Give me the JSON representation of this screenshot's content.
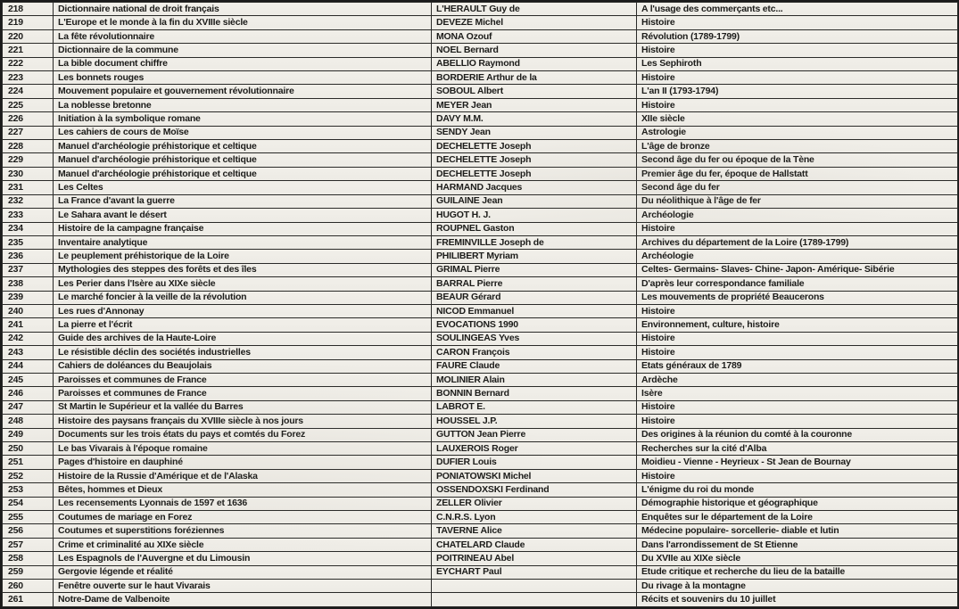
{
  "colors": {
    "page_background": "#cbc9c4",
    "cell_background": "#efede8",
    "border": "#2a2a28",
    "text": "#1c1c1a"
  },
  "table": {
    "rows": [
      {
        "id": "218",
        "title": "Dictionnaire national de droit français",
        "author": "L'HERAULT Guy de",
        "subject": "A l'usage des commerçants etc..."
      },
      {
        "id": "219",
        "title": "L'Europe et le monde à la fin du XVIIIe siècle",
        "author": "DEVEZE Michel",
        "subject": "Histoire"
      },
      {
        "id": "220",
        "title": "La fête révolutionnaire",
        "author": "MONA Ozouf",
        "subject": "Révolution (1789-1799)"
      },
      {
        "id": "221",
        "title": "Dictionnaire de la commune",
        "author": "NOEL Bernard",
        "subject": "Histoire"
      },
      {
        "id": "222",
        "title": "La bible document chiffre",
        "author": "ABELLIO Raymond",
        "subject": "Les Sephiroth"
      },
      {
        "id": "223",
        "title": "Les bonnets rouges",
        "author": "BORDERIE Arthur de la",
        "subject": "Histoire"
      },
      {
        "id": "224",
        "title": "Mouvement populaire et gouvernement révolutionnaire",
        "author": "SOBOUL Albert",
        "subject": "L'an II (1793-1794)"
      },
      {
        "id": "225",
        "title": "La noblesse bretonne",
        "author": "MEYER Jean",
        "subject": "Histoire"
      },
      {
        "id": "226",
        "title": "Initiation à la symbolique romane",
        "author": "DAVY M.M.",
        "subject": "XIIe siècle"
      },
      {
        "id": "227",
        "title": "Les cahiers de cours de Moïse",
        "author": "SENDY Jean",
        "subject": "Astrologie"
      },
      {
        "id": "228",
        "title": "Manuel d'archéologie préhistorique et celtique",
        "author": "DECHELETTE Joseph",
        "subject": "L'âge de bronze"
      },
      {
        "id": "229",
        "title": "Manuel d'archéologie préhistorique et celtique",
        "author": "DECHELETTE Joseph",
        "subject": "Second âge du fer ou époque de la Tène"
      },
      {
        "id": "230",
        "title": "Manuel d'archéologie préhistorique et celtique",
        "author": "DECHELETTE Joseph",
        "subject": "Premier âge du fer, époque de Hallstatt"
      },
      {
        "id": "231",
        "title": "Les Celtes",
        "author": "HARMAND Jacques",
        "subject": "Second âge du fer"
      },
      {
        "id": "232",
        "title": "La France d'avant la guerre",
        "author": "GUILAINE Jean",
        "subject": "Du néolithique à l'âge de fer"
      },
      {
        "id": "233",
        "title": "Le Sahara avant le désert",
        "author": "HUGOT H. J.",
        "subject": "Archéologie"
      },
      {
        "id": "234",
        "title": "Histoire de la campagne française",
        "author": "ROUPNEL Gaston",
        "subject": "Histoire"
      },
      {
        "id": "235",
        "title": "Inventaire analytique",
        "author": "FREMINVILLE Joseph de",
        "subject": "Archives du département de la Loire (1789-1799)"
      },
      {
        "id": "236",
        "title": "Le peuplement préhistorique de la Loire",
        "author": "PHILIBERT Myriam",
        "subject": "Archéologie"
      },
      {
        "id": "237",
        "title": "Mythologies des steppes des forêts et des îles",
        "author": "GRIMAL Pierre",
        "subject": "Celtes- Germains- Slaves- Chine- Japon- Amérique- Sibérie"
      },
      {
        "id": "238",
        "title": "Les Perier dans l'Isère au XIXe siècle",
        "author": "BARRAL Pierre",
        "subject": "D'après leur correspondance familiale"
      },
      {
        "id": "239",
        "title": "Le marché foncier à la veille de la révolution",
        "author": "BEAUR Gérard",
        "subject": "Les mouvements de propriété Beaucerons"
      },
      {
        "id": "240",
        "title": "Les rues d'Annonay",
        "author": "NICOD Emmanuel",
        "subject": "Histoire"
      },
      {
        "id": "241",
        "title": "La pierre et l'écrit",
        "author": "EVOCATIONS 1990",
        "subject": "Environnement, culture, histoire"
      },
      {
        "id": "242",
        "title": "Guide des archives de la Haute-Loire",
        "author": "SOULINGEAS Yves",
        "subject": "Histoire"
      },
      {
        "id": "243",
        "title": "Le résistible déclin des sociétés industrielles",
        "author": "CARON François",
        "subject": "Histoire"
      },
      {
        "id": "244",
        "title": "Cahiers de doléances du Beaujolais",
        "author": "FAURE Claude",
        "subject": "Etats généraux de 1789"
      },
      {
        "id": "245",
        "title": "Paroisses et communes de France",
        "author": "MOLINIER Alain",
        "subject": "Ardèche"
      },
      {
        "id": "246",
        "title": "Paroisses et communes de France",
        "author": "BONNIN Bernard",
        "subject": "Isère"
      },
      {
        "id": "247",
        "title": "St Martin le Supérieur et la vallée du Barres",
        "author": "LABROT E.",
        "subject": "Histoire"
      },
      {
        "id": "248",
        "title": "Histoire des paysans français du XVIIIe siècle à nos jours",
        "author": "HOUSSEL J.P.",
        "subject": "Histoire"
      },
      {
        "id": "249",
        "title": "Documents sur les trois états du pays et comtés du Forez",
        "author": "GUTTON Jean Pierre",
        "subject": "Des origines à la réunion du comté à la couronne"
      },
      {
        "id": "250",
        "title": "Le bas Vivarais à l'époque romaine",
        "author": "LAUXEROIS Roger",
        "subject": "Recherches sur la cité d'Alba"
      },
      {
        "id": "251",
        "title": "Pages d'histoire en dauphiné",
        "author": "DUFIER Louis",
        "subject": "Moidieu - Vienne - Heyrieux - St Jean de Bournay"
      },
      {
        "id": "252",
        "title": "Histoire de la Russie d'Amérique et de l'Alaska",
        "author": "PONIATOWSKI Michel",
        "subject": "Histoire"
      },
      {
        "id": "253",
        "title": "Bêtes, hommes et Dieux",
        "author": "OSSENDOXSKI Ferdinand",
        "subject": "L'énigme du roi du monde"
      },
      {
        "id": "254",
        "title": "Les recensements Lyonnais de 1597 et 1636",
        "author": "ZELLER Olivier",
        "subject": "Démographie historique et géographique"
      },
      {
        "id": "255",
        "title": "Coutumes de mariage en Forez",
        "author": "C.N.R.S. Lyon",
        "subject": "Enquêtes sur le département de la Loire"
      },
      {
        "id": "256",
        "title": "Coutumes et superstitions foréziennes",
        "author": "TAVERNE Alice",
        "subject": "Médecine populaire- sorcellerie- diable et lutin"
      },
      {
        "id": "257",
        "title": "Crime et criminalité au XIXe siècle",
        "author": "CHATELARD Claude",
        "subject": "Dans l'arrondissement de St Etienne"
      },
      {
        "id": "258",
        "title": "Les Espagnols de l'Auvergne et du Limousin",
        "author": "POITRINEAU Abel",
        "subject": "Du XVIIe au XIXe siècle"
      },
      {
        "id": "259",
        "title": "Gergovie légende et réalité",
        "author": "EYCHART Paul",
        "subject": "Etude critique et recherche du lieu de la bataille"
      },
      {
        "id": "260",
        "title": "Fenêtre ouverte sur le haut Vivarais",
        "author": "",
        "subject": "Du rivage à la montagne"
      },
      {
        "id": "261",
        "title": "Notre-Dame de Valbenoite",
        "author": "",
        "subject": "Récits et souvenirs du 10 juillet"
      }
    ]
  }
}
